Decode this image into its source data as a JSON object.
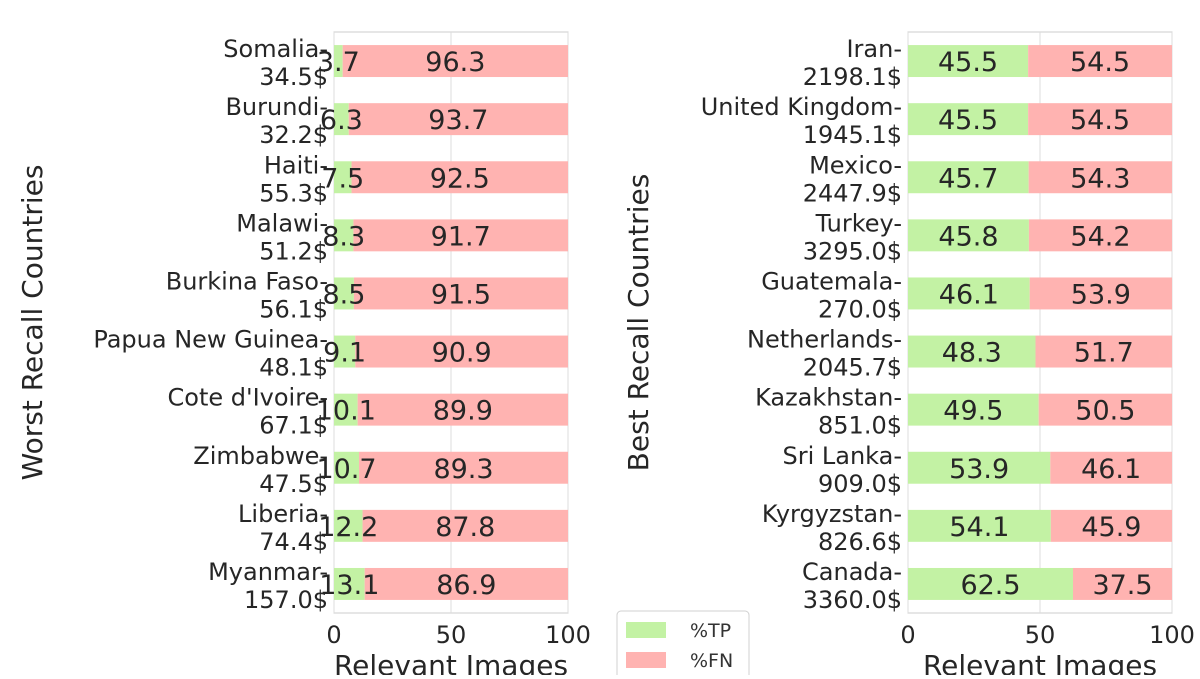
{
  "legend": {
    "items": [
      {
        "label": "%TP",
        "color": "#c3f2a4"
      },
      {
        "label": "%FN",
        "color": "#ffb3b1"
      }
    ]
  },
  "chart_data": [
    {
      "type": "bar",
      "orientation": "horizontal",
      "stacked": true,
      "xlabel": "Relevant Images",
      "ylabel": "Worst Recall Countries",
      "xlim": [
        0,
        100
      ],
      "xticks": [
        0,
        50,
        100
      ],
      "grid": true,
      "categories": [
        {
          "name": "Somalia-",
          "income": "34.5$"
        },
        {
          "name": "Burundi-",
          "income": "32.2$"
        },
        {
          "name": "Haiti-",
          "income": "55.3$"
        },
        {
          "name": "Malawi-",
          "income": "51.2$"
        },
        {
          "name": "Burkina Faso-",
          "income": "56.1$"
        },
        {
          "name": "Papua New Guinea-",
          "income": "48.1$"
        },
        {
          "name": "Cote d'Ivoire-",
          "income": "67.1$"
        },
        {
          "name": "Zimbabwe-",
          "income": "47.5$"
        },
        {
          "name": "Liberia-",
          "income": "74.4$"
        },
        {
          "name": "Myanmar-",
          "income": "157.0$"
        }
      ],
      "series": [
        {
          "name": "%TP",
          "color": "#c3f2a4",
          "values": [
            3.7,
            6.3,
            7.5,
            8.3,
            8.5,
            9.1,
            10.1,
            10.7,
            12.2,
            13.1
          ]
        },
        {
          "name": "%FN",
          "color": "#ffb3b1",
          "values": [
            96.3,
            93.7,
            92.5,
            91.7,
            91.5,
            90.9,
            89.9,
            89.3,
            87.8,
            86.9
          ]
        }
      ]
    },
    {
      "type": "bar",
      "orientation": "horizontal",
      "stacked": true,
      "xlabel": "Relevant Images",
      "ylabel": "Best Recall Countries",
      "xlim": [
        0,
        100
      ],
      "xticks": [
        0,
        50,
        100
      ],
      "grid": true,
      "categories": [
        {
          "name": "Iran-",
          "income": "2198.1$"
        },
        {
          "name": "United Kingdom-",
          "income": "1945.1$"
        },
        {
          "name": "Mexico-",
          "income": "2447.9$"
        },
        {
          "name": "Turkey-",
          "income": "3295.0$"
        },
        {
          "name": "Guatemala-",
          "income": "270.0$"
        },
        {
          "name": "Netherlands-",
          "income": "2045.7$"
        },
        {
          "name": "Kazakhstan-",
          "income": "851.0$"
        },
        {
          "name": "Sri Lanka-",
          "income": "909.0$"
        },
        {
          "name": "Kyrgyzstan-",
          "income": "826.6$"
        },
        {
          "name": "Canada-",
          "income": "3360.0$"
        }
      ],
      "series": [
        {
          "name": "%TP",
          "color": "#c3f2a4",
          "values": [
            45.5,
            45.5,
            45.7,
            45.8,
            46.1,
            48.3,
            49.5,
            53.9,
            54.1,
            62.5
          ]
        },
        {
          "name": "%FN",
          "color": "#ffb3b1",
          "values": [
            54.5,
            54.5,
            54.3,
            54.2,
            53.9,
            51.7,
            50.5,
            46.1,
            45.9,
            37.5
          ]
        }
      ]
    }
  ]
}
